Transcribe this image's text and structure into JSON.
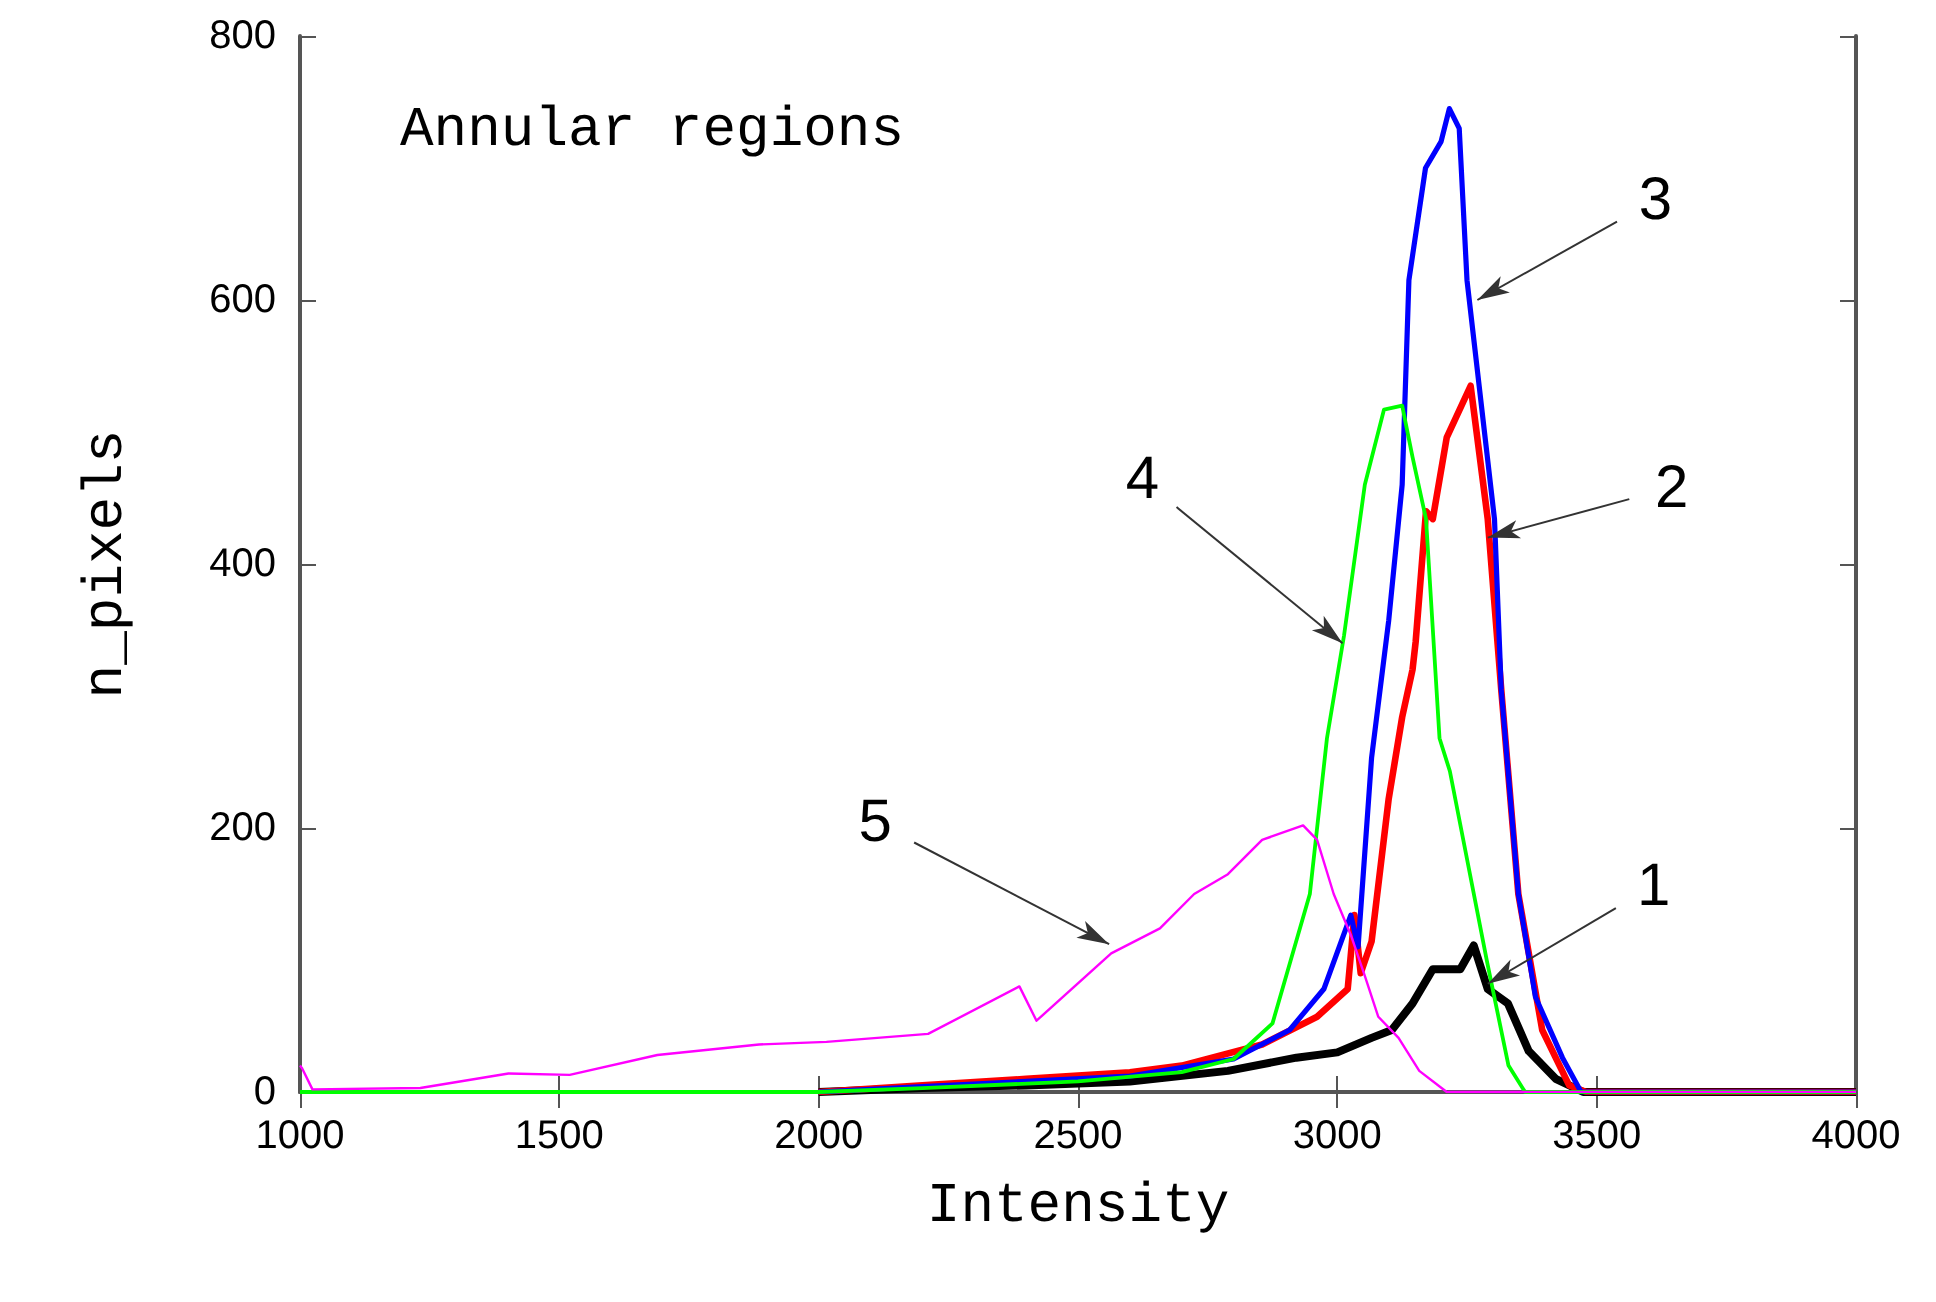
{
  "chart_data": {
    "type": "line",
    "xlabel": "Intensity",
    "ylabel": "n_pixels",
    "xlim": [
      1000,
      4000
    ],
    "ylim": [
      0,
      800
    ],
    "xticks": [
      1000,
      1500,
      2000,
      2500,
      3000,
      3500,
      4000
    ],
    "yticks": [
      0,
      200,
      400,
      600,
      800
    ],
    "marker": "none",
    "series": [
      {
        "color": "#000000",
        "x": [
          2000,
          2200,
          2400,
          2600,
          2789,
          2921,
          3000,
          3066,
          3105,
          3145,
          3184,
          3237,
          3263,
          3290,
          3329,
          3369,
          3421,
          3474,
          4000
        ],
        "values": [
          0,
          3,
          5,
          8,
          16,
          26,
          30,
          41,
          47,
          67,
          93,
          93,
          111,
          78,
          67,
          31,
          10,
          0,
          0
        ]
      },
      {
        "color": "#ff0000",
        "x": [
          2000,
          2200,
          2400,
          2600,
          2700,
          2855,
          2961,
          3020,
          3033,
          3045,
          3066,
          3099,
          3125,
          3145,
          3151,
          3171,
          3184,
          3211,
          3257,
          3290,
          3316,
          3349,
          3395,
          3447,
          3480,
          4000
        ],
        "values": [
          0,
          5,
          10,
          15,
          20,
          36,
          57,
          78,
          134,
          90,
          114,
          222,
          284,
          320,
          341,
          440,
          434,
          496,
          535,
          434,
          305,
          150,
          47,
          5,
          0,
          0
        ]
      },
      {
        "color": "#0000ff",
        "x": [
          2000,
          2200,
          2400,
          2600,
          2800,
          2908,
          2974,
          3026,
          3040,
          3066,
          3099,
          3125,
          3138,
          3170,
          3200,
          3216,
          3235,
          3250,
          3303,
          3316,
          3349,
          3382,
          3434,
          3470,
          4000
        ],
        "values": [
          0,
          4,
          8,
          12,
          25,
          47,
          78,
          134,
          110,
          253,
          357,
          460,
          615,
          700,
          720,
          745,
          730,
          615,
          434,
          305,
          150,
          72,
          26,
          0,
          0
        ]
      },
      {
        "color": "#00ff00",
        "x": [
          1000,
          2000,
          2200,
          2500,
          2700,
          2800,
          2875,
          2947,
          2980,
          3013,
          3053,
          3090,
          3125,
          3145,
          3171,
          3197,
          3217,
          3289,
          3330,
          3362,
          4000
        ],
        "values": [
          0,
          0,
          3,
          8,
          15,
          25,
          52,
          150,
          268,
          346,
          460,
          517,
          520,
          481,
          434,
          268,
          243,
          98,
          20,
          0,
          0
        ]
      },
      {
        "color": "#ff00ff",
        "x": [
          1000,
          1004,
          1024,
          1232,
          1402,
          1520,
          1689,
          1885,
          2015,
          2211,
          2387,
          2420,
          2564,
          2658,
          2724,
          2789,
          2855,
          2934,
          2961,
          2993,
          3026,
          3053,
          3079,
          3118,
          3158,
          3211,
          4000
        ],
        "values": [
          20,
          18,
          2,
          3,
          14,
          13,
          28,
          36,
          38,
          44,
          80,
          54,
          105,
          124,
          150,
          165,
          191,
          202,
          191,
          150,
          119,
          88,
          57,
          41,
          16,
          0,
          0
        ]
      }
    ],
    "annotations": [
      "Annular regions",
      {
        "text": "3",
        "x": 3270,
        "y": 600
      },
      {
        "text": "2",
        "x": 3290,
        "y": 420
      },
      {
        "text": "4",
        "x": 3010,
        "y": 340
      },
      {
        "text": "5",
        "x": 2560,
        "y": 112
      },
      {
        "text": "1",
        "x": 3290,
        "y": 82
      }
    ]
  }
}
